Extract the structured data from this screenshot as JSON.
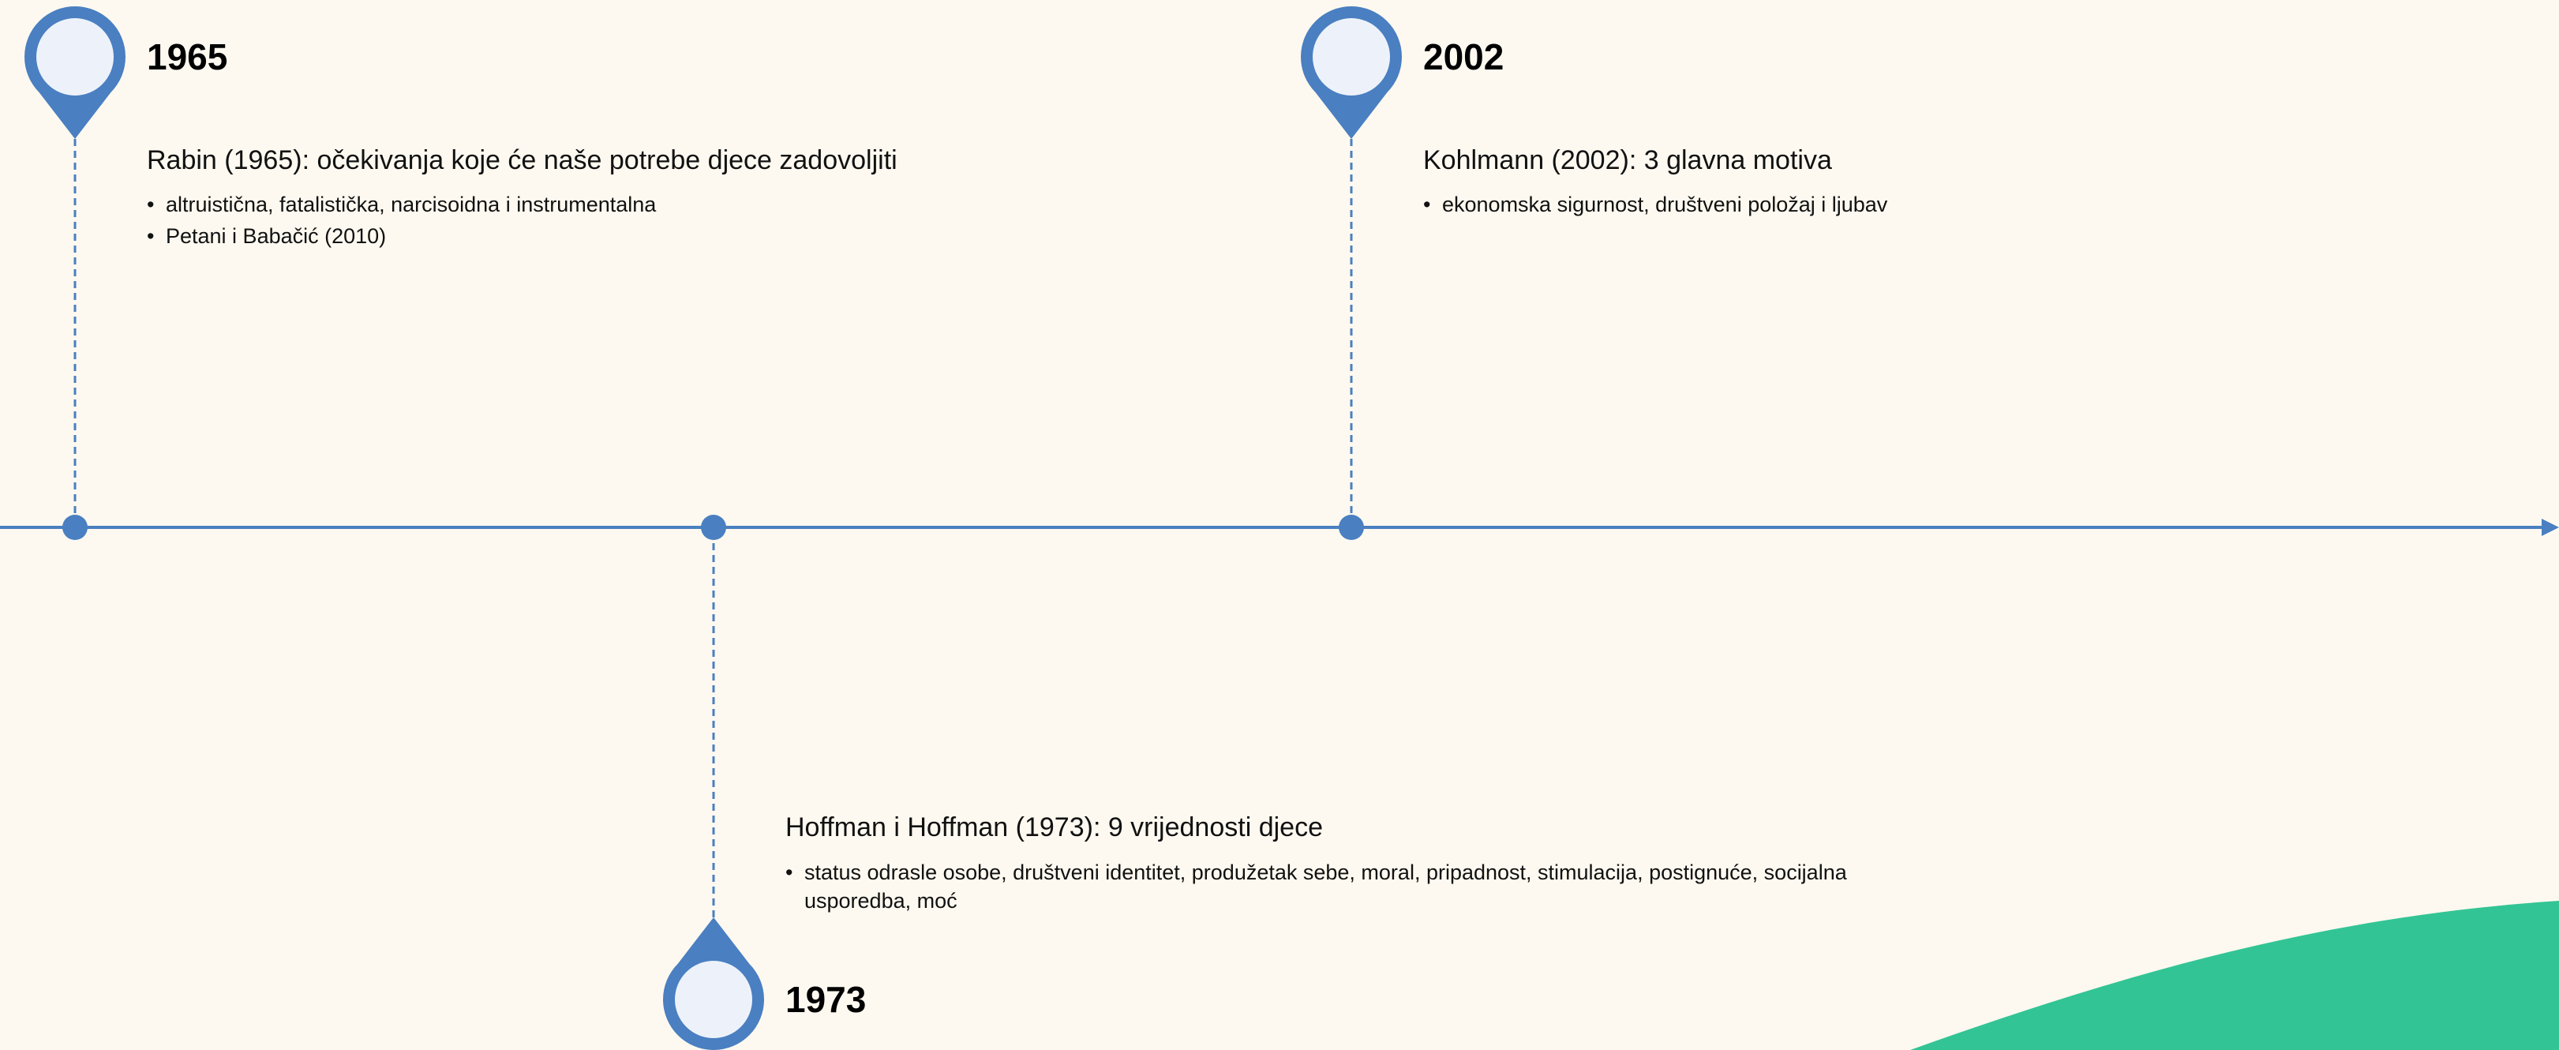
{
  "events": [
    {
      "year": "1965",
      "heading": "Rabin (1965): očekivanja koje će naše potrebe djece zadovoljiti",
      "bullets": [
        "altruistična, fatalistička, narcisoidna i instrumentalna",
        "Petani i Babačić (2010)"
      ]
    },
    {
      "year": "1973",
      "heading": "Hoffman i Hoffman (1973): 9 vrijednosti djece",
      "bullets": [
        "status odrasle osobe, društveni identitet, produžetak sebe, moral, pripadnost, stimulacija, postignuće, socijalna usporedba, moć"
      ]
    },
    {
      "year": "2002",
      "heading": "Kohlmann (2002): 3 glavna motiva",
      "bullets": [
        "ekonomska sigurnost, društveni položaj i ljubav"
      ]
    }
  ]
}
